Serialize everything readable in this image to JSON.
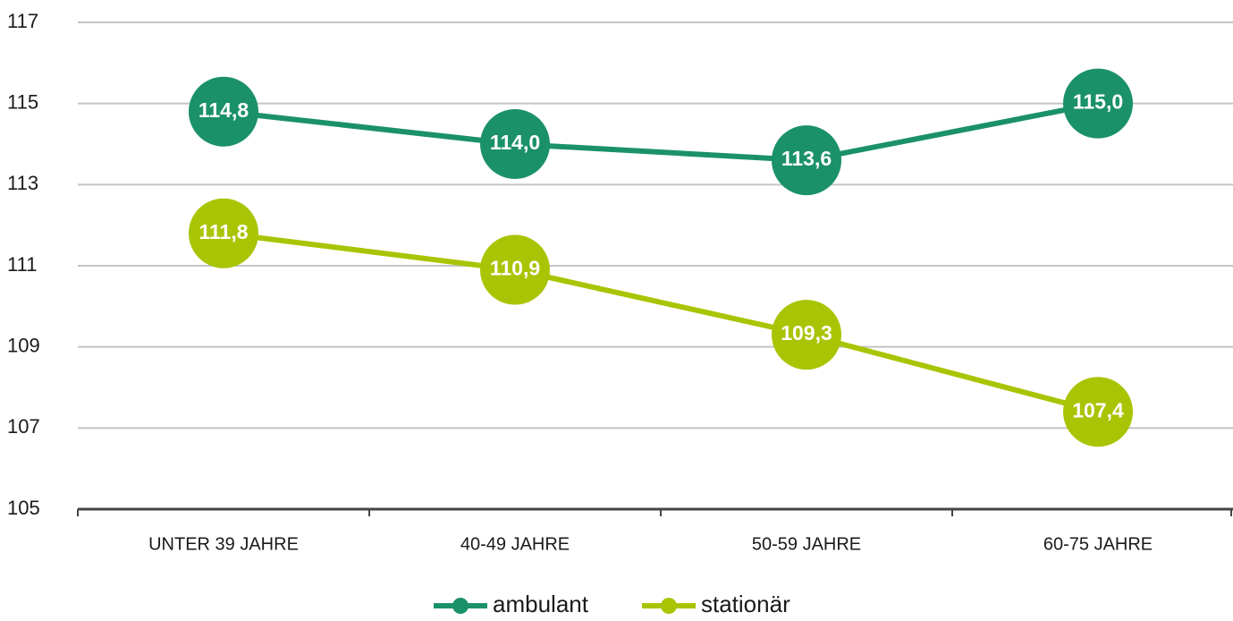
{
  "chart_data": {
    "type": "line",
    "categories": [
      "UNTER 39 JAHRE",
      "40-49 JAHRE",
      "50-59 JAHRE",
      "60-75 JAHRE"
    ],
    "series": [
      {
        "name": "ambulant",
        "color": "#1b9169",
        "values": [
          114.8,
          114.0,
          113.6,
          115.0
        ],
        "value_labels": [
          "114,8",
          "114,0",
          "113,6",
          "115,0"
        ]
      },
      {
        "name": "stationär",
        "color": "#a9c404",
        "values": [
          111.8,
          110.9,
          109.3,
          107.4
        ],
        "value_labels": [
          "111,8",
          "110,9",
          "109,3",
          "107,4"
        ]
      }
    ],
    "ylim": [
      105,
      117
    ],
    "yticks": [
      105,
      107,
      109,
      111,
      113,
      115,
      117
    ],
    "grid": true,
    "legend": "bottom"
  }
}
